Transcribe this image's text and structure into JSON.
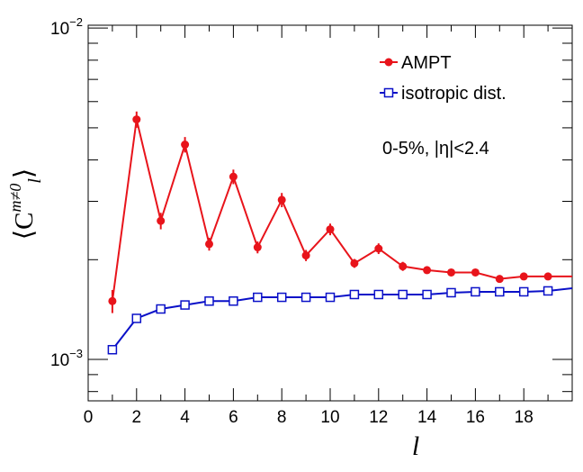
{
  "chart_data": {
    "type": "line",
    "xlabel": "l",
    "ylabel": {
      "prefix": "⟨C",
      "superscript": "m≠0",
      "subscript": "l",
      "suffix": "⟩"
    },
    "xlim": [
      0,
      20
    ],
    "ylim": [
      0.00075,
      0.0102
    ],
    "yscale": "log",
    "x_ticks": [
      0,
      2,
      4,
      6,
      8,
      10,
      12,
      14,
      16,
      18
    ],
    "y_tick_labels": [
      {
        "value": 0.01,
        "base": "10",
        "exp": "−2"
      },
      {
        "value": 0.001,
        "base": "10",
        "exp": "−3"
      }
    ],
    "annotation": "0-5%, |η|<2.4",
    "legend": {
      "position": "top-right",
      "entries": [
        {
          "label": "AMPT",
          "marker": "filled-circle"
        },
        {
          "label": "isotropic dist.",
          "marker": "open-square"
        }
      ]
    },
    "series": [
      {
        "name": "AMPT",
        "color": "#e8141b",
        "marker": "filled-circle",
        "x": [
          1,
          2,
          3,
          4,
          5,
          6,
          7,
          8,
          9,
          10,
          11,
          12,
          13,
          14,
          15,
          16,
          17,
          18,
          19,
          20
        ],
        "y": [
          0.0015,
          0.0053,
          0.00262,
          0.00445,
          0.00223,
          0.00356,
          0.00218,
          0.00303,
          0.00206,
          0.00247,
          0.00195,
          0.00216,
          0.00191,
          0.00186,
          0.00183,
          0.00183,
          0.00175,
          0.00178,
          0.00178,
          0.00178
        ],
        "err": [
          0.00012,
          0.0003,
          0.00015,
          0.00024,
          0.0001,
          0.00018,
          9e-05,
          0.00015,
          8e-05,
          0.0001,
          6e-05,
          8e-05,
          6e-05,
          4e-05,
          4e-05,
          4e-05,
          4e-05,
          4e-05,
          4e-05,
          3e-05
        ]
      },
      {
        "name": "isotropic dist.",
        "color": "#0a10c8",
        "marker": "open-square",
        "x": [
          1,
          2,
          3,
          4,
          5,
          6,
          7,
          8,
          9,
          10,
          11,
          12,
          13,
          14,
          15,
          16,
          17,
          18,
          19,
          20
        ],
        "y": [
          0.00107,
          0.00133,
          0.00142,
          0.00146,
          0.0015,
          0.0015,
          0.00154,
          0.00154,
          0.00154,
          0.00154,
          0.00157,
          0.00157,
          0.00157,
          0.00157,
          0.00159,
          0.0016,
          0.0016,
          0.0016,
          0.00161,
          0.00164
        ],
        "err": [
          1e-05,
          1e-05,
          1e-05,
          1e-05,
          1e-05,
          1e-05,
          1e-05,
          1e-05,
          1e-05,
          1e-05,
          1e-05,
          1e-05,
          1e-05,
          1e-05,
          1e-05,
          1e-05,
          1e-05,
          1e-05,
          1e-05,
          1e-05
        ]
      }
    ]
  }
}
